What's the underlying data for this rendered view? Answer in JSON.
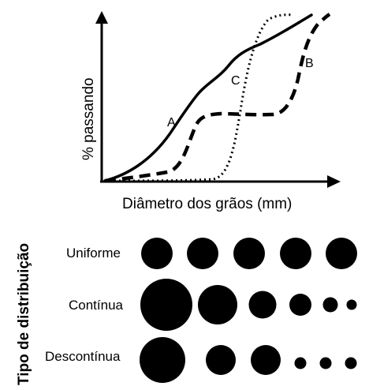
{
  "graph": {
    "y_axis_label": "% passando",
    "x_axis_label": "Diâmetro dos grãos (mm)",
    "curves": [
      {
        "label": "A",
        "style": "solid"
      },
      {
        "label": "B",
        "style": "dashed"
      },
      {
        "label": "C",
        "style": "dotted"
      }
    ]
  },
  "distribution": {
    "title": "Tipo de distribuição",
    "rows": [
      {
        "label": "Uniforme",
        "relative_sizes": [
          1,
          1,
          1,
          1,
          1
        ]
      },
      {
        "label": "Contínua",
        "relative_sizes": [
          1,
          0.76,
          0.53,
          0.43,
          0.29,
          0.19
        ]
      },
      {
        "label": "Descontínua",
        "relative_sizes": [
          1,
          0.66,
          0.66,
          0.26,
          0.26,
          0.26
        ]
      }
    ]
  },
  "colors": {
    "ink": "#000000",
    "background": "#ffffff"
  }
}
